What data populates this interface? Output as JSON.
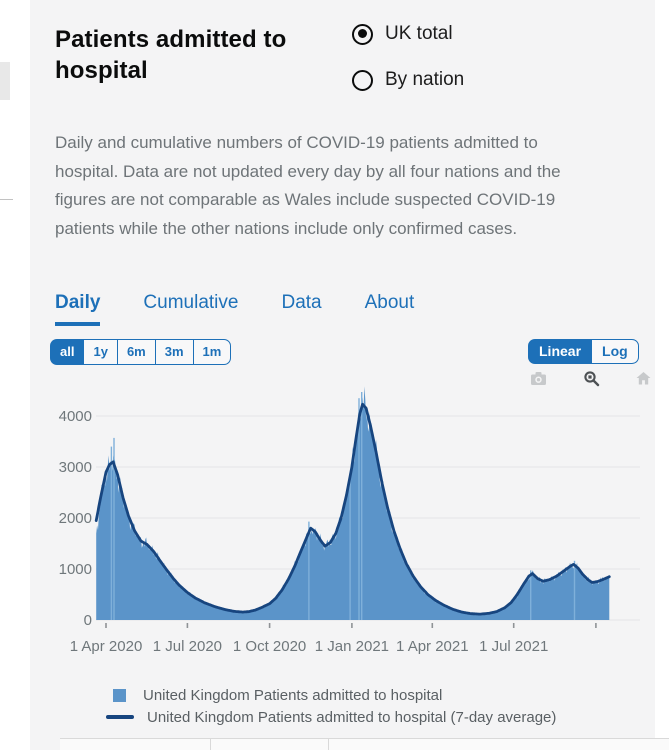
{
  "colors": {
    "accent": "#1d70b8",
    "card_bg": "#f4f4f5",
    "area_fill": "#5b94c9",
    "avg_line": "#17457f",
    "spike": "#7fb0da",
    "grid": "#e3e4e6",
    "axis_text": "#6f777b"
  },
  "header": {
    "title": "Patients admitted to hospital",
    "radios": [
      {
        "label": "UK total",
        "selected": true
      },
      {
        "label": "By nation",
        "selected": false
      }
    ]
  },
  "description": "Daily and cumulative numbers of COVID-19 patients admitted to hospital. Data are not updated every day by all four nations and the figures are not comparable as Wales include suspected COVID-19 patients while the other nations include only confirmed cases.",
  "tabs": [
    {
      "label": "Daily",
      "active": true
    },
    {
      "label": "Cumulative",
      "active": false
    },
    {
      "label": "Data",
      "active": false
    },
    {
      "label": "About",
      "active": false
    }
  ],
  "range_buttons": [
    {
      "label": "all",
      "active": true
    },
    {
      "label": "1y",
      "active": false
    },
    {
      "label": "6m",
      "active": false
    },
    {
      "label": "3m",
      "active": false
    },
    {
      "label": "1m",
      "active": false
    }
  ],
  "scale_toggle": [
    {
      "label": "Linear",
      "active": true
    },
    {
      "label": "Log",
      "active": false
    }
  ],
  "modebar": [
    {
      "icon": "camera-icon",
      "active": false
    },
    {
      "icon": "zoom-icon",
      "active": true
    },
    {
      "icon": "home-icon",
      "active": false
    }
  ],
  "chart_data": {
    "type": "area",
    "ylim": [
      0,
      4500
    ],
    "yticks": [
      0,
      1000,
      2000,
      3000,
      4000
    ],
    "grid": true,
    "legend_position": "bottom",
    "xticks": [
      {
        "label": "1 Apr 2020",
        "date": "2020-04-01"
      },
      {
        "label": "1 Jul 2020",
        "date": "2020-07-01"
      },
      {
        "label": "1 Oct 2020",
        "date": "2020-10-01"
      },
      {
        "label": "1 Jan 2021",
        "date": "2021-01-01"
      },
      {
        "label": "1 Apr 2021",
        "date": "2021-04-01"
      },
      {
        "label": "1 Jul 2021",
        "date": "2021-07-01"
      },
      {
        "label": "",
        "date": "2021-10-01"
      }
    ],
    "series": [
      {
        "name": "United Kingdom Patients admitted to hospital",
        "type": "area",
        "color": "#5b94c9"
      },
      {
        "name": "United Kingdom Patients admitted to hospital (7-day average)",
        "type": "line",
        "color": "#17457f",
        "points": [
          [
            "2020-03-21",
            1950
          ],
          [
            "2020-03-26",
            2400
          ],
          [
            "2020-04-01",
            2900
          ],
          [
            "2020-04-05",
            3050
          ],
          [
            "2020-04-09",
            3100
          ],
          [
            "2020-04-14",
            2850
          ],
          [
            "2020-04-20",
            2400
          ],
          [
            "2020-04-26",
            2050
          ],
          [
            "2020-05-03",
            1750
          ],
          [
            "2020-05-10",
            1550
          ],
          [
            "2020-05-17",
            1480
          ],
          [
            "2020-05-24",
            1350
          ],
          [
            "2020-06-01",
            1150
          ],
          [
            "2020-06-08",
            980
          ],
          [
            "2020-06-15",
            820
          ],
          [
            "2020-06-22",
            680
          ],
          [
            "2020-07-01",
            540
          ],
          [
            "2020-07-10",
            430
          ],
          [
            "2020-07-20",
            340
          ],
          [
            "2020-08-01",
            260
          ],
          [
            "2020-08-12",
            205
          ],
          [
            "2020-08-22",
            170
          ],
          [
            "2020-09-01",
            155
          ],
          [
            "2020-09-08",
            165
          ],
          [
            "2020-09-15",
            195
          ],
          [
            "2020-09-22",
            245
          ],
          [
            "2020-10-01",
            320
          ],
          [
            "2020-10-08",
            430
          ],
          [
            "2020-10-15",
            590
          ],
          [
            "2020-10-22",
            800
          ],
          [
            "2020-10-29",
            1050
          ],
          [
            "2020-11-05",
            1350
          ],
          [
            "2020-11-11",
            1600
          ],
          [
            "2020-11-16",
            1800
          ],
          [
            "2020-11-21",
            1730
          ],
          [
            "2020-11-27",
            1560
          ],
          [
            "2020-12-02",
            1450
          ],
          [
            "2020-12-08",
            1520
          ],
          [
            "2020-12-14",
            1700
          ],
          [
            "2020-12-20",
            2000
          ],
          [
            "2020-12-26",
            2450
          ],
          [
            "2021-01-01",
            3000
          ],
          [
            "2021-01-06",
            3600
          ],
          [
            "2021-01-10",
            4050
          ],
          [
            "2021-01-13",
            4230
          ],
          [
            "2021-01-17",
            4150
          ],
          [
            "2021-01-22",
            3800
          ],
          [
            "2021-01-28",
            3300
          ],
          [
            "2021-02-03",
            2750
          ],
          [
            "2021-02-10",
            2200
          ],
          [
            "2021-02-17",
            1750
          ],
          [
            "2021-02-24",
            1400
          ],
          [
            "2021-03-03",
            1100
          ],
          [
            "2021-03-11",
            850
          ],
          [
            "2021-03-19",
            650
          ],
          [
            "2021-03-27",
            500
          ],
          [
            "2021-04-05",
            380
          ],
          [
            "2021-04-14",
            290
          ],
          [
            "2021-04-24",
            210
          ],
          [
            "2021-05-04",
            155
          ],
          [
            "2021-05-14",
            125
          ],
          [
            "2021-05-24",
            115
          ],
          [
            "2021-06-03",
            130
          ],
          [
            "2021-06-12",
            165
          ],
          [
            "2021-06-21",
            240
          ],
          [
            "2021-06-28",
            340
          ],
          [
            "2021-07-05",
            500
          ],
          [
            "2021-07-12",
            700
          ],
          [
            "2021-07-18",
            860
          ],
          [
            "2021-07-22",
            910
          ],
          [
            "2021-07-28",
            810
          ],
          [
            "2021-08-03",
            760
          ],
          [
            "2021-08-10",
            790
          ],
          [
            "2021-08-18",
            860
          ],
          [
            "2021-08-26",
            960
          ],
          [
            "2021-09-02",
            1050
          ],
          [
            "2021-09-06",
            1090
          ],
          [
            "2021-09-11",
            1020
          ],
          [
            "2021-09-16",
            900
          ],
          [
            "2021-09-22",
            790
          ],
          [
            "2021-09-27",
            735
          ],
          [
            "2021-10-03",
            755
          ],
          [
            "2021-10-09",
            795
          ],
          [
            "2021-10-16",
            850
          ]
        ]
      }
    ],
    "daily_spikes": [
      [
        "2020-04-07",
        3400
      ],
      [
        "2020-04-10",
        3570
      ],
      [
        "2020-11-14",
        1930
      ],
      [
        "2020-12-30",
        2870
      ],
      [
        "2021-01-09",
        4350
      ],
      [
        "2021-01-12",
        4470
      ],
      [
        "2021-07-20",
        975
      ],
      [
        "2021-09-07",
        1160
      ]
    ]
  }
}
